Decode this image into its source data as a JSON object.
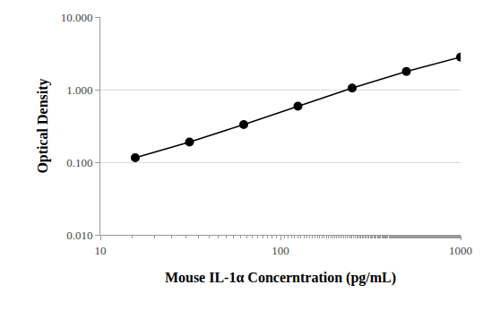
{
  "chart_data": {
    "type": "line",
    "x_label": "Mouse IL-1α Concerntration (pg/mL)",
    "y_label": "Optical Density",
    "x": [
      15.625,
      31.25,
      62.5,
      125,
      250,
      500,
      1000
    ],
    "values": [
      0.115,
      0.19,
      0.33,
      0.59,
      1.05,
      1.78,
      2.8
    ],
    "color": "#000000",
    "marker": "circle",
    "line_style": "solid",
    "log": true,
    "grid": true,
    "xlim": [
      10,
      1000
    ],
    "ylim": [
      0.01,
      10
    ],
    "xticks": [
      10,
      100,
      1000
    ],
    "yticks": [
      {
        "value": 0.01,
        "label": "0.010"
      },
      {
        "value": 0.1,
        "label": "0.100"
      },
      {
        "value": 1,
        "label": "1.000"
      },
      {
        "value": 10,
        "label": "10.000"
      }
    ]
  }
}
